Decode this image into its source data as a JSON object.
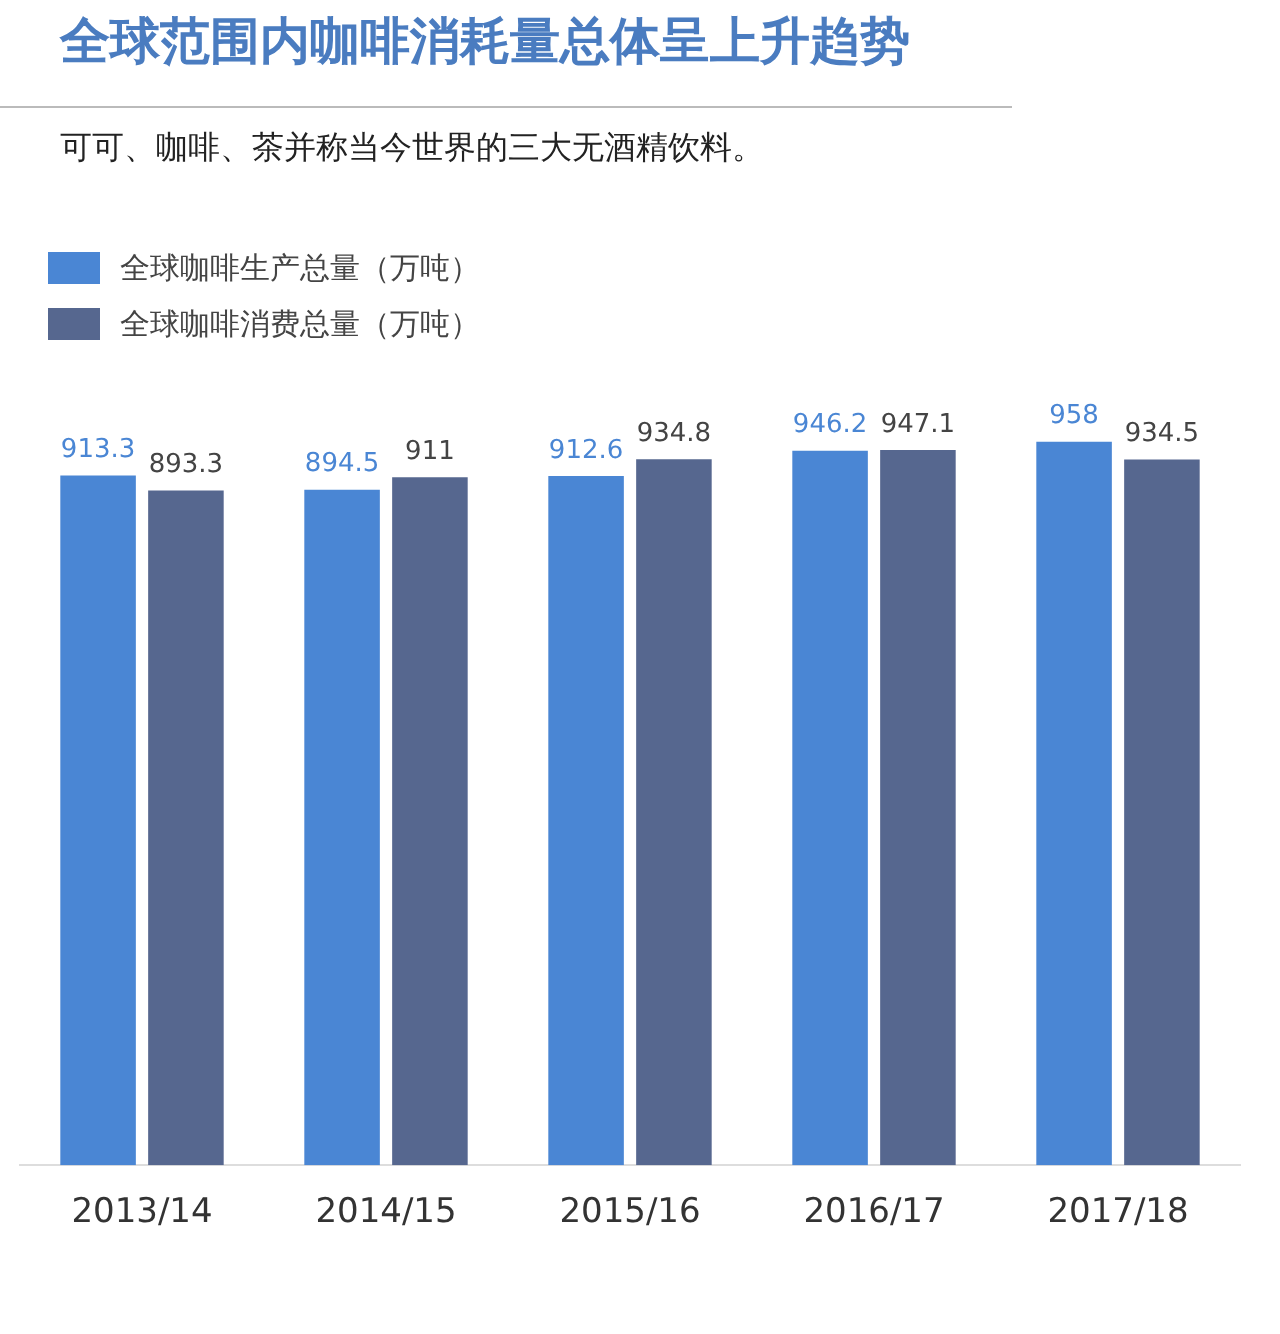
{
  "chart_data": {
    "type": "bar",
    "title": "全球范围内咖啡消耗量总体呈上升趋势",
    "subtitle": "可可、咖啡、茶并称当今世界的三大无酒精饮料。",
    "categories": [
      "2013/14",
      "2014/15",
      "2015/16",
      "2016/17",
      "2017/18"
    ],
    "series": [
      {
        "name": "全球咖啡生产总量（万吨）",
        "color": "#4a86d4",
        "values": [
          913.3,
          894.5,
          912.6,
          946.2,
          958
        ]
      },
      {
        "name": "全球咖啡消费总量（万吨）",
        "color": "#56678f",
        "values": [
          893.3,
          911,
          934.8,
          947.1,
          934.5
        ]
      }
    ],
    "tick_labels": "x",
    "data_labels": true,
    "legend": "top left",
    "grid": false
  }
}
